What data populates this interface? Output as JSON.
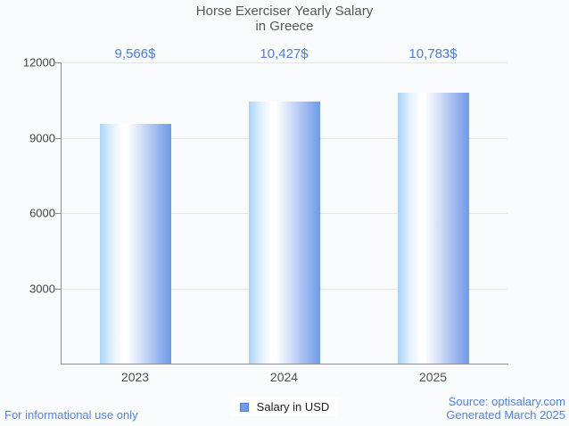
{
  "title": {
    "line1": "Horse Exerciser Yearly Salary",
    "line2": "in Greece"
  },
  "chart_data": {
    "type": "bar",
    "categories": [
      "2023",
      "2024",
      "2025"
    ],
    "series": [
      {
        "name": "Salary in USD",
        "values": [
          9566,
          10427,
          10783
        ]
      }
    ],
    "value_labels": [
      "9,566$",
      "10,427$",
      "10,783$"
    ],
    "title": "Horse Exerciser Yearly Salary in Greece",
    "xlabel": "",
    "ylabel": "",
    "ylim": [
      0,
      12000
    ],
    "yticks": [
      3000,
      6000,
      9000,
      12000
    ],
    "grid": true,
    "legend_position": "bottom"
  },
  "legend": {
    "label": "Salary in USD"
  },
  "footer": {
    "left": "For informational use only",
    "source": "Source: optisalary.com",
    "generated": "Generated March 2025"
  },
  "colors": {
    "background": "#fafbfd",
    "bar_gradient_left": "#a9d4f9",
    "bar_gradient_mid": "#ffffff",
    "bar_gradient_right": "#6d9bea",
    "accent_blue": "#4d7ce2",
    "footer_blue": "#5581e8",
    "title_gray": "#56575a",
    "gridline": "#e4e7ea",
    "axis": "#8e8e90"
  }
}
